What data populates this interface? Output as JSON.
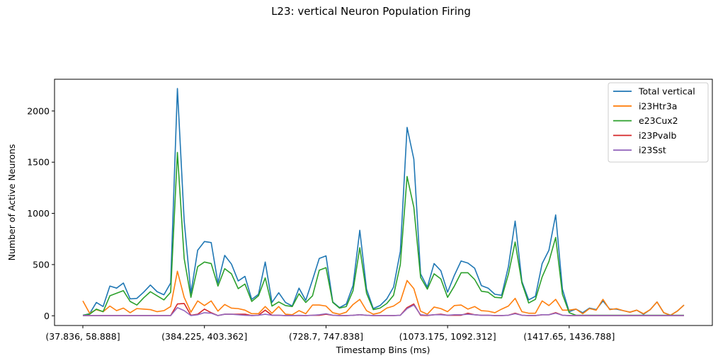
{
  "chart_data": {
    "type": "line",
    "title": "L23: vertical Neuron Population Firing",
    "xlabel": "Timestamp Bins (ms)",
    "ylabel": "Number of Active Neurons",
    "ylim": [
      -95,
      2310
    ],
    "yticks": [
      0,
      500,
      1000,
      1500,
      2000
    ],
    "x_tick_labels": [
      {
        "index": 0,
        "label": "(37.836, 58.888]"
      },
      {
        "index": 18,
        "label": "(384.225, 403.362]"
      },
      {
        "index": 36,
        "label": "(728.7, 747.838]"
      },
      {
        "index": 54,
        "label": "(1073.175, 1092.312]"
      },
      {
        "index": 72,
        "label": "(1417.65, 1436.788]"
      }
    ],
    "num_bins": 90,
    "grid": false,
    "legend_position": "top-right",
    "series": [
      {
        "name": "Total vertical",
        "color": "#1f77b4",
        "values": [
          5,
          20,
          130,
          90,
          290,
          270,
          320,
          165,
          170,
          230,
          300,
          235,
          205,
          320,
          2220,
          930,
          220,
          640,
          725,
          715,
          320,
          590,
          505,
          340,
          385,
          160,
          210,
          525,
          130,
          225,
          130,
          95,
          270,
          150,
          350,
          560,
          585,
          135,
          80,
          115,
          295,
          835,
          260,
          70,
          100,
          165,
          280,
          630,
          1840,
          1530,
          410,
          280,
          510,
          440,
          230,
          395,
          535,
          515,
          465,
          295,
          270,
          210,
          200,
          480,
          925,
          335,
          155,
          190,
          510,
          640,
          985,
          260,
          40,
          65,
          30,
          75,
          60,
          145,
          65,
          65,
          50,
          35,
          55,
          15,
          60,
          135,
          30,
          5,
          45,
          105
        ]
      },
      {
        "name": "i23Htr3a",
        "color": "#ff7f0e",
        "values": [
          145,
          25,
          60,
          40,
          95,
          50,
          75,
          30,
          70,
          65,
          60,
          40,
          50,
          90,
          435,
          180,
          35,
          145,
          100,
          145,
          45,
          110,
          75,
          70,
          55,
          20,
          20,
          90,
          25,
          90,
          15,
          10,
          50,
          20,
          105,
          105,
          95,
          30,
          15,
          35,
          110,
          160,
          50,
          15,
          30,
          75,
          95,
          140,
          345,
          265,
          45,
          15,
          85,
          70,
          40,
          100,
          105,
          65,
          90,
          50,
          45,
          30,
          65,
          95,
          170,
          40,
          25,
          25,
          145,
          100,
          160,
          55,
          55,
          65,
          20,
          70,
          55,
          160,
          60,
          70,
          50,
          35,
          55,
          20,
          60,
          135,
          30,
          5,
          45,
          105
        ]
      },
      {
        "name": "e23Cux2",
        "color": "#2ca02c",
        "values": [
          5,
          15,
          65,
          40,
          195,
          220,
          245,
          140,
          105,
          175,
          235,
          195,
          155,
          230,
          1595,
          560,
          180,
          480,
          525,
          510,
          290,
          460,
          410,
          265,
          310,
          140,
          195,
          370,
          95,
          135,
          100,
          90,
          215,
          130,
          195,
          445,
          470,
          130,
          75,
          90,
          245,
          665,
          220,
          60,
          75,
          120,
          200,
          500,
          1360,
          1060,
          375,
          260,
          410,
          360,
          180,
          290,
          420,
          420,
          355,
          240,
          230,
          180,
          175,
          405,
          720,
          320,
          125,
          160,
          380,
          530,
          765,
          210,
          30,
          5,
          5,
          5,
          5,
          5,
          5,
          5,
          5,
          5,
          5,
          5,
          5,
          5,
          5,
          5,
          5,
          5
        ]
      },
      {
        "name": "i23Pvalb",
        "color": "#d62728",
        "values": [
          2,
          2,
          2,
          2,
          2,
          2,
          2,
          2,
          2,
          2,
          2,
          2,
          2,
          2,
          115,
          120,
          5,
          15,
          65,
          30,
          2,
          15,
          15,
          15,
          15,
          2,
          5,
          55,
          5,
          5,
          2,
          2,
          2,
          2,
          5,
          5,
          15,
          5,
          2,
          2,
          5,
          10,
          5,
          2,
          2,
          2,
          2,
          5,
          80,
          115,
          5,
          2,
          10,
          15,
          5,
          5,
          5,
          25,
          10,
          5,
          5,
          2,
          2,
          5,
          25,
          5,
          2,
          2,
          10,
          10,
          30,
          5,
          2,
          2,
          2,
          2,
          2,
          2,
          2,
          2,
          2,
          2,
          2,
          2,
          2,
          2,
          2,
          2,
          2,
          2
        ]
      },
      {
        "name": "i23Sst",
        "color": "#9467bd",
        "values": [
          2,
          2,
          2,
          2,
          2,
          2,
          2,
          2,
          2,
          2,
          2,
          2,
          2,
          2,
          80,
          50,
          2,
          10,
          30,
          25,
          2,
          15,
          15,
          10,
          5,
          2,
          5,
          15,
          5,
          5,
          2,
          2,
          5,
          2,
          5,
          10,
          20,
          5,
          2,
          2,
          5,
          10,
          5,
          2,
          2,
          2,
          2,
          5,
          70,
          105,
          10,
          5,
          10,
          10,
          5,
          10,
          10,
          15,
          10,
          5,
          5,
          2,
          2,
          5,
          20,
          5,
          2,
          2,
          10,
          10,
          25,
          5,
          2,
          2,
          2,
          2,
          2,
          2,
          2,
          2,
          2,
          2,
          2,
          2,
          2,
          2,
          2,
          2,
          2,
          2
        ]
      }
    ]
  }
}
